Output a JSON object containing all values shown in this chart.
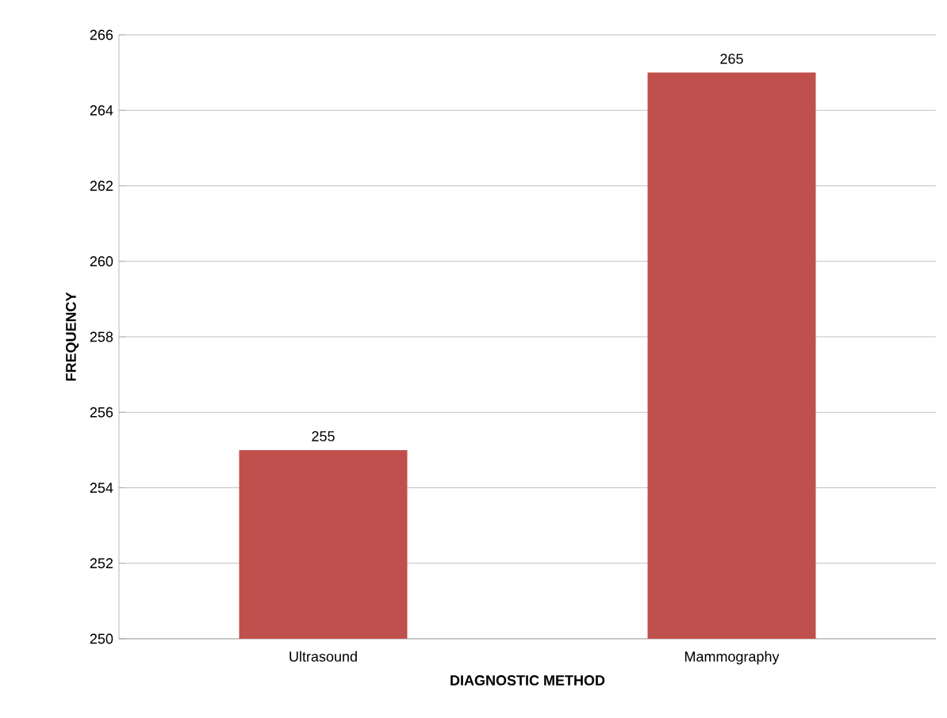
{
  "chart_data": {
    "type": "bar",
    "categories": [
      "Ultrasound",
      "Mammography"
    ],
    "values": [
      255,
      265
    ],
    "color": "#c0504d",
    "xlabel": "DIAGNOSTIC METHOD",
    "ylabel": "FREQUENCY",
    "ylim": [
      250,
      266
    ],
    "yticks": [
      250,
      252,
      254,
      256,
      258,
      260,
      262,
      264,
      266
    ],
    "grid": "y",
    "data_labels": true
  }
}
